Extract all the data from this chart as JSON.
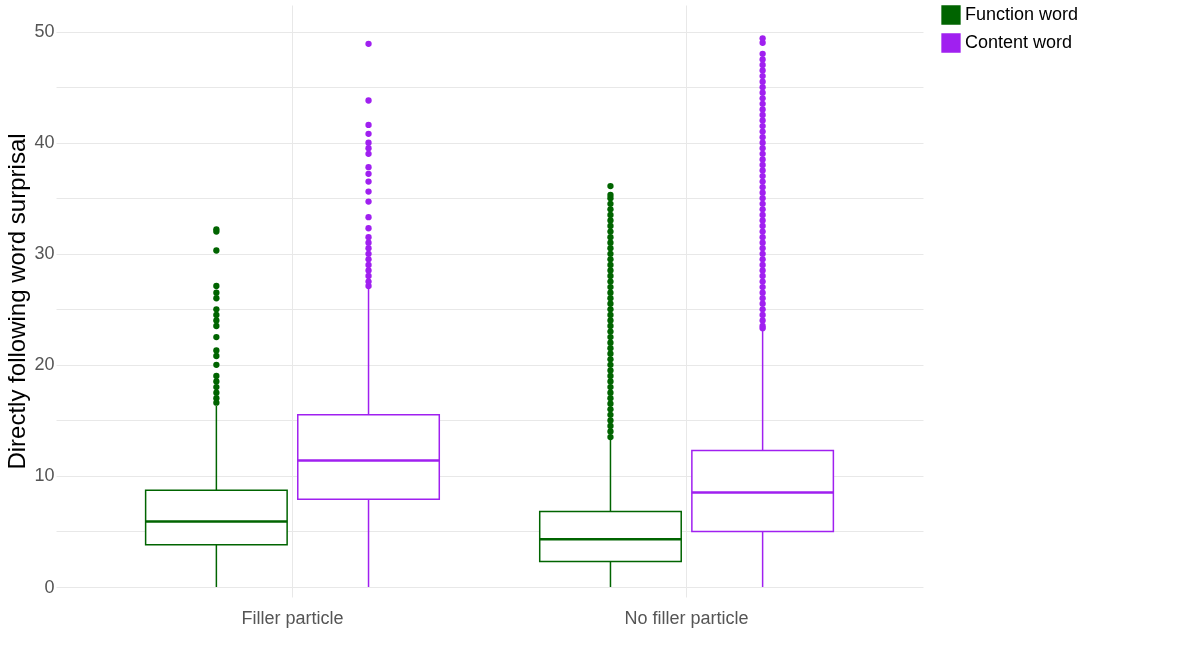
{
  "chart_data": {
    "type": "box",
    "ylabel": "Directly following word surprisal",
    "categories": [
      "Filler particle",
      "No filler particle"
    ],
    "ylim": [
      -0.9,
      52.4
    ],
    "yticks": [
      0,
      {
        "value": 5,
        "label": null
      },
      10,
      {
        "value": 15,
        "label": null
      },
      20,
      {
        "value": 25,
        "label": null
      },
      30,
      {
        "value": 35,
        "label": null
      },
      40,
      {
        "value": 45,
        "label": null
      },
      50
    ],
    "grid": true,
    "legend": "right",
    "series": [
      {
        "name": "Function word",
        "color": "#006400",
        "boxes": [
          {
            "low": 0,
            "q1": 3.8,
            "median": 5.9,
            "q3": 8.7,
            "high": 16.3,
            "outliers": [
              16.6,
              17,
              17.5,
              18,
              18.5,
              19,
              20,
              20.8,
              21.3,
              22.5,
              23.5,
              24,
              24.5,
              25,
              26,
              26.5,
              27.1,
              30.3,
              32,
              32.2
            ]
          },
          {
            "low": 0,
            "q1": 2.3,
            "median": 4.3,
            "q3": 6.8,
            "high": 13.4,
            "outliers": [
              13.5,
              14,
              14.5,
              15,
              15.5,
              16,
              16.5,
              17,
              17.5,
              18,
              18.5,
              19,
              19.5,
              20,
              20.5,
              21,
              21.5,
              22,
              22.5,
              23,
              23.5,
              24,
              24.5,
              25,
              25.5,
              26,
              26.5,
              27,
              27.5,
              28,
              28.5,
              29,
              29.5,
              30,
              30.5,
              31,
              31.5,
              32,
              32.5,
              33,
              33.5,
              34,
              34.5,
              35,
              35.3,
              36.1
            ]
          }
        ]
      },
      {
        "name": "Content word",
        "color": "#a020f0",
        "boxes": [
          {
            "low": 0,
            "q1": 7.9,
            "median": 11.4,
            "q3": 15.5,
            "high": 26.9,
            "outliers": [
              27.1,
              27.5,
              28,
              28.5,
              29,
              29.5,
              30,
              30.5,
              31,
              31.5,
              32.3,
              33.3,
              34.7,
              35.6,
              36.5,
              37.2,
              37.8,
              39,
              39.5,
              40,
              40.8,
              41.6,
              43.8,
              48.9
            ]
          },
          {
            "low": 0,
            "q1": 5,
            "median": 8.5,
            "q3": 12.3,
            "high": 23.1,
            "outliers": [
              23.3,
              23.5,
              24,
              24.5,
              25,
              25.5,
              26,
              26.5,
              27,
              27.5,
              28,
              28.5,
              29,
              29.5,
              30,
              30.5,
              31,
              31.5,
              32,
              32.5,
              33,
              33.5,
              34,
              34.5,
              35,
              35.5,
              36,
              36.5,
              37,
              37.5,
              38,
              38.5,
              39,
              39.5,
              40,
              40.5,
              41,
              41.5,
              42,
              42.5,
              43,
              43.5,
              44,
              44.5,
              45,
              45.5,
              46,
              46.5,
              47,
              47.5,
              48,
              49,
              49.4
            ]
          }
        ]
      }
    ]
  }
}
